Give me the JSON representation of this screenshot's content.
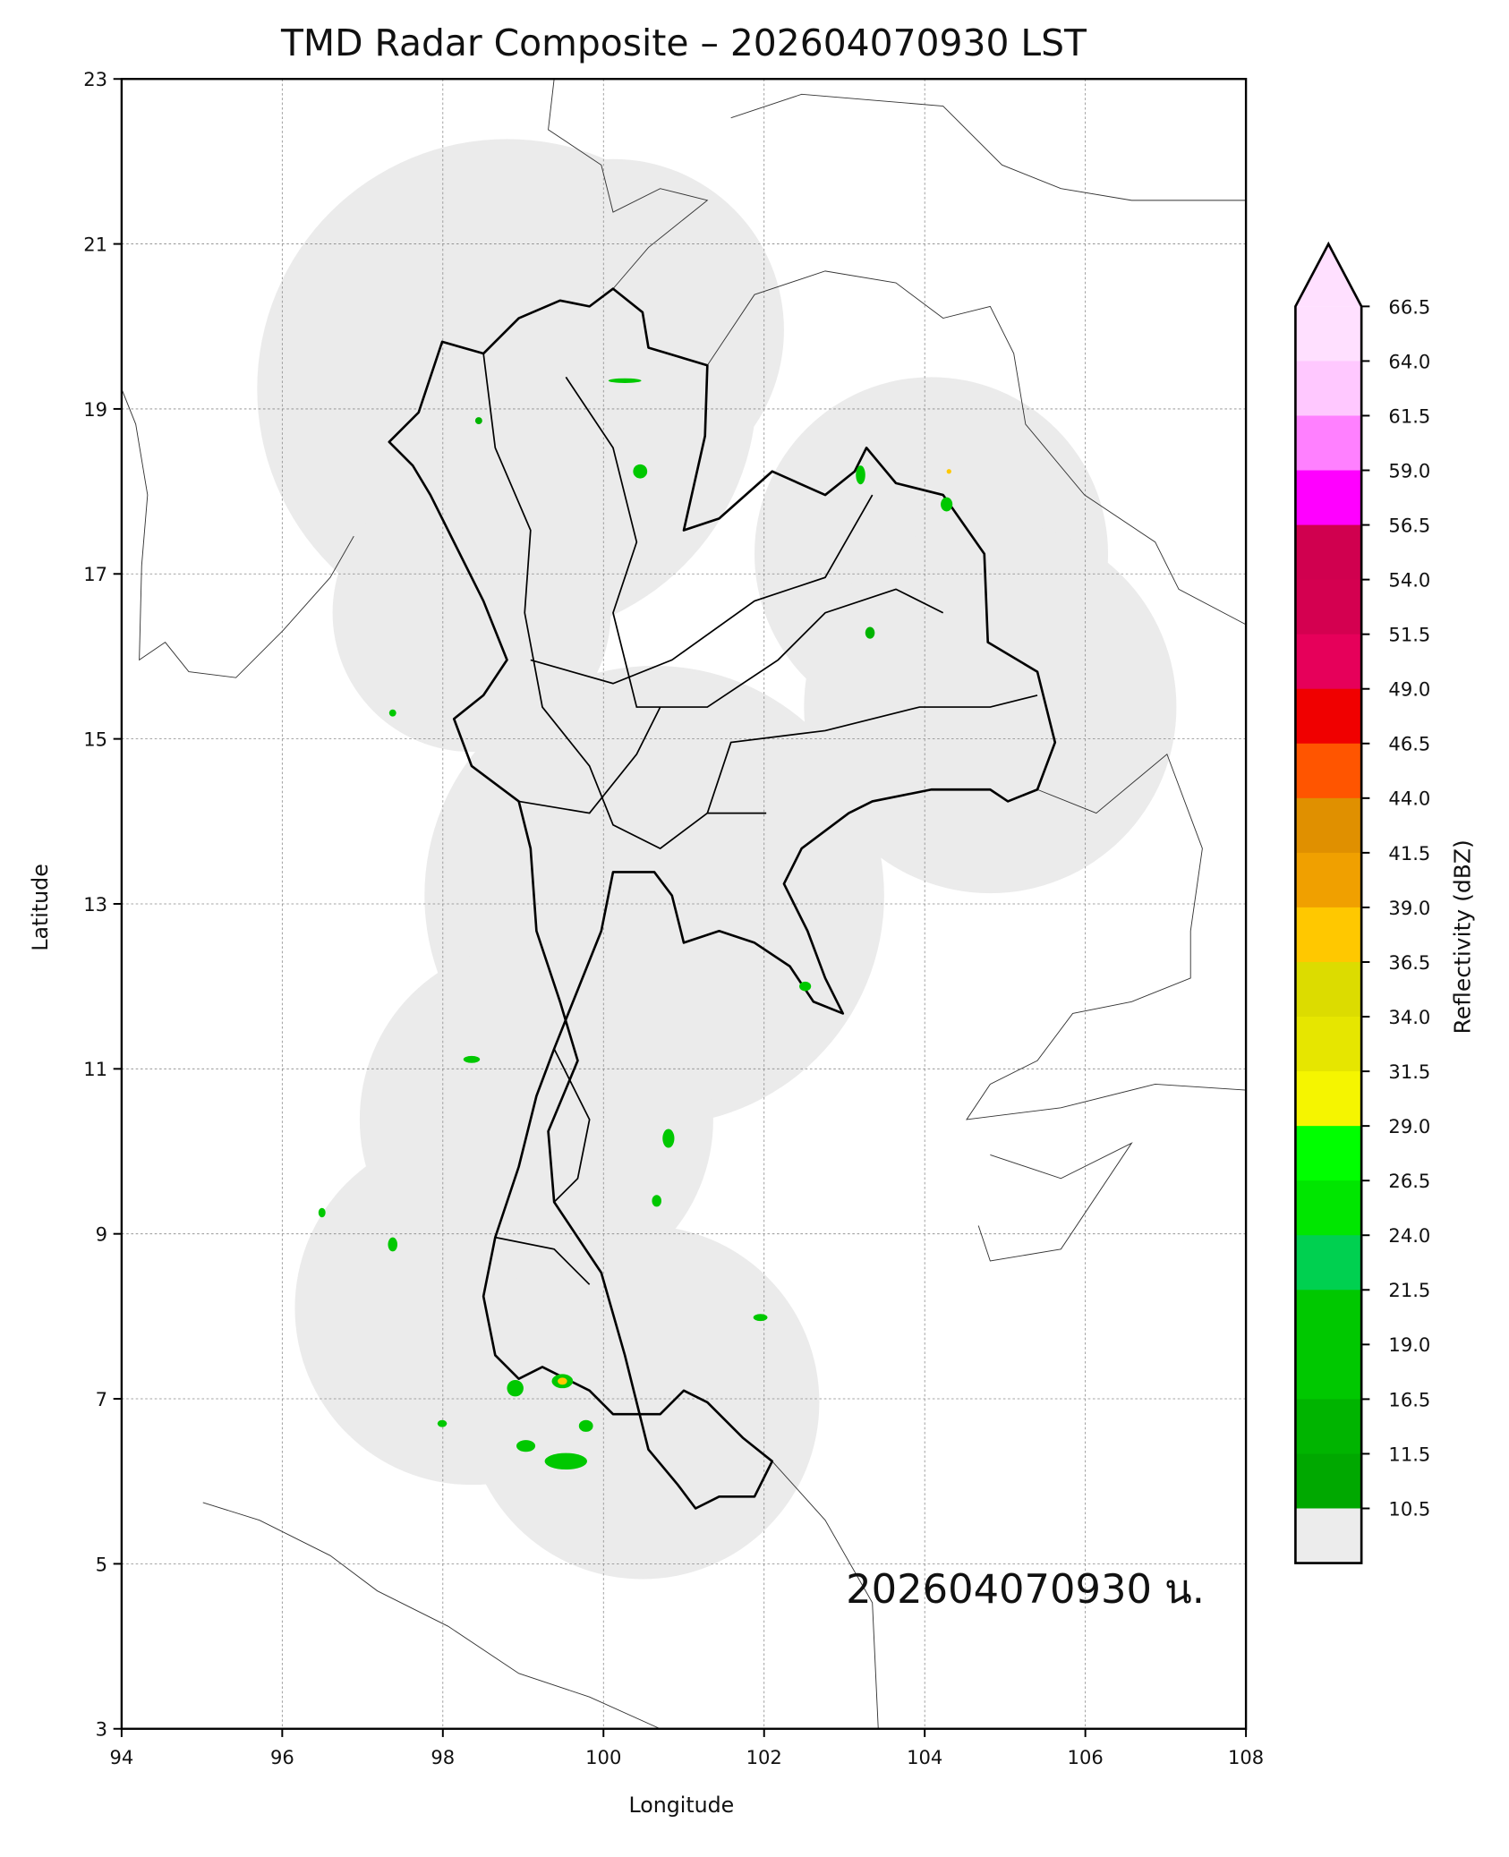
{
  "title": "TMD Radar Composite – 202604070930 LST",
  "xlabel": "Longitude",
  "ylabel": "Latitude",
  "annotation": "202604070930 น.",
  "x_ticks": [
    "94",
    "96",
    "98",
    "100",
    "102",
    "104",
    "106",
    "108"
  ],
  "y_ticks": [
    "3",
    "5",
    "7",
    "9",
    "11",
    "13",
    "15",
    "17",
    "19",
    "21",
    "23"
  ],
  "xlim": [
    94,
    108
  ],
  "ylim": [
    3,
    23
  ],
  "grid": true,
  "colorbar": {
    "label": "Reflectivity (dBZ)",
    "extend": "max",
    "ticks": [
      "66.5",
      "64.0",
      "61.5",
      "59.0",
      "56.5",
      "54.0",
      "51.5",
      "49.0",
      "46.5",
      "44.0",
      "41.5",
      "39.0",
      "36.5",
      "34.0",
      "31.5",
      "29.0",
      "26.5",
      "24.0",
      "21.5",
      "19.0",
      "16.5",
      "11.5",
      "10.5"
    ],
    "over_color": "#ffe0ff",
    "colors": [
      "#ffe0ff",
      "#ffc8ff",
      "#ff80ff",
      "#ff00ff",
      "#d0004f",
      "#d40050",
      "#e6005a",
      "#f00000",
      "#ff5500",
      "#e09000",
      "#f0a000",
      "#ffc800",
      "#dcdc00",
      "#e6e600",
      "#f5f500",
      "#00ff00",
      "#00e600",
      "#00d050",
      "#00c800",
      "#00c800",
      "#00b400",
      "#00a800",
      "#ececec"
    ]
  },
  "coverage_color": "#ebebeb"
}
